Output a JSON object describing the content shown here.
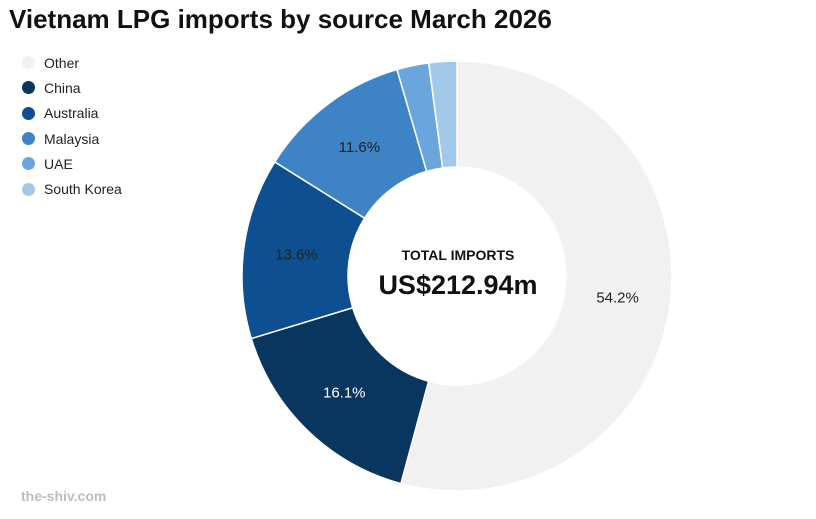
{
  "chart_data": {
    "type": "pie",
    "title": "Vietnam LPG imports by source March 2026",
    "center": {
      "label": "TOTAL IMPORTS",
      "value": "US$212.94m"
    },
    "categories": [
      "Other",
      "China",
      "Australia",
      "Malaysia",
      "UAE",
      "South Korea"
    ],
    "values": [
      54.2,
      16.1,
      13.6,
      11.6,
      2.4,
      2.1
    ],
    "value_labels": [
      "54.2%",
      "16.1%",
      "13.6%",
      "11.6%",
      "",
      ""
    ],
    "colors": [
      "#f1f1f1",
      "#08365f",
      "#0e4f91",
      "#3d83c5",
      "#6aa6dc",
      "#a2c8ea"
    ],
    "label_colors": [
      "#222222",
      "#ffffff",
      "#222222",
      "#222222",
      "#222222",
      "#222222"
    ],
    "legend": "top-left"
  },
  "footer": {
    "source": "the-shiv.com"
  }
}
